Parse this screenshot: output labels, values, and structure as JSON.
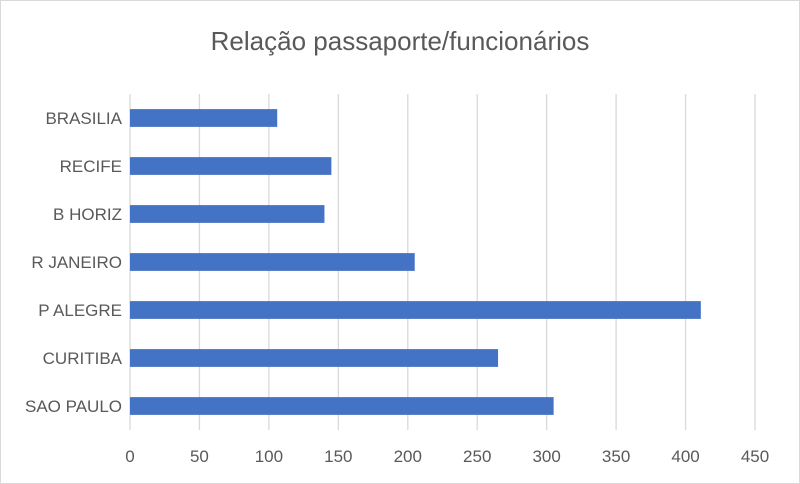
{
  "chart_data": {
    "type": "bar",
    "orientation": "horizontal",
    "title": "Relação passaporte/funcionários",
    "xlabel": "",
    "ylabel": "",
    "categories": [
      "BRASILIA",
      "RECIFE",
      "B HORIZ",
      "R JANEIRO",
      "P ALEGRE",
      "CURITIBA",
      "SAO PAULO"
    ],
    "values": [
      106,
      145,
      140,
      205,
      411,
      265,
      305
    ],
    "xlim": [
      0,
      450
    ],
    "xticks": [
      0,
      50,
      100,
      150,
      200,
      250,
      300,
      350,
      400,
      450
    ],
    "grid": true,
    "legend": "none",
    "bar_color": "#4472c4",
    "grid_color": "#d9d9d9",
    "text_color": "#595959"
  }
}
